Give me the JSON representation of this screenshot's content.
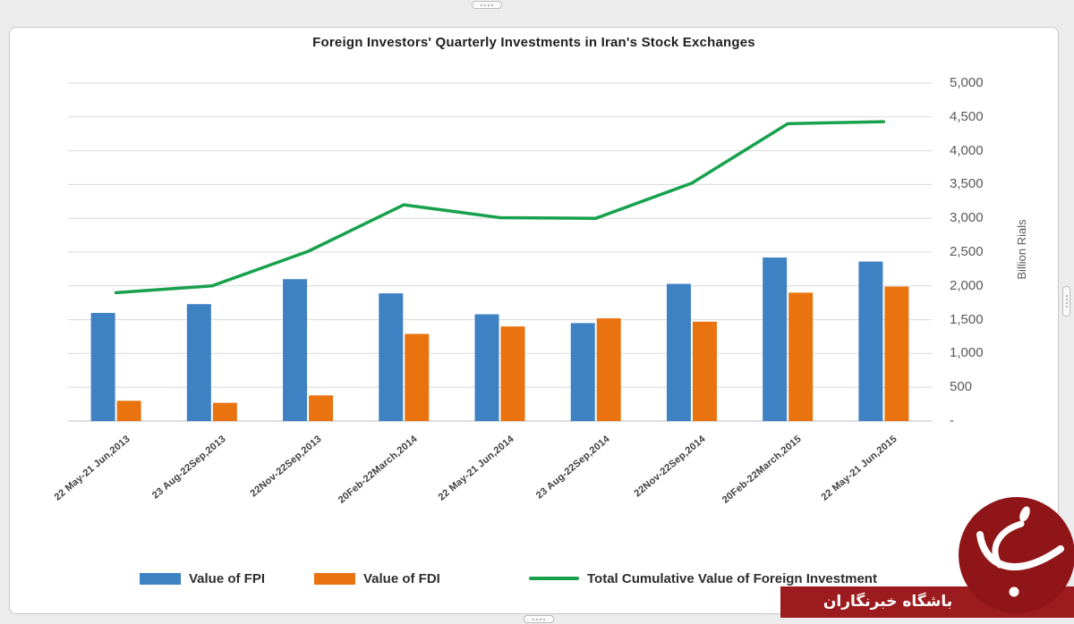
{
  "chart_data": {
    "type": "bar",
    "title": "Foreign Investors' Quarterly Investments in Iran's Stock Exchanges",
    "categories": [
      "22 May-21 Jun,2013",
      "23 Aug-22Sep,2013",
      "22Nov-22Sep,2013",
      "20Feb-22March,2014",
      "22 May-21 Jun,2014",
      "23 Aug-22Sep,2014",
      "22Nov-22Sep,2014",
      "20Feb-22March,2015",
      "22 May-21 Jun,2015"
    ],
    "series": [
      {
        "name": "Value of FPI",
        "kind": "bar",
        "color": "#3E82C4",
        "values": [
          1600,
          1730,
          2100,
          1890,
          1580,
          1450,
          2030,
          2420,
          2360
        ]
      },
      {
        "name": "Value of FDI",
        "kind": "bar",
        "color": "#E9730F",
        "values": [
          300,
          270,
          380,
          1290,
          1400,
          1520,
          1470,
          1900,
          1990
        ]
      },
      {
        "name": "Total Cumulative Value of Foreign Investment",
        "kind": "line",
        "color": "#17A14D",
        "values": [
          1900,
          2000,
          2510,
          3200,
          3010,
          3000,
          3520,
          4400,
          4430
        ]
      }
    ],
    "xlabel": "",
    "ylabel": "Billion Rials",
    "ylim": [
      0,
      5000
    ],
    "ytick_step": 500,
    "ytick_labels_top_to_bottom": [
      "5,000",
      "4,500",
      "4,000",
      "3,500",
      "3,000",
      "2,500",
      "2,000",
      "1,500",
      "1,000",
      "500",
      "-"
    ],
    "grid": true,
    "legend_position": "bottom"
  },
  "watermark": {
    "banner_text": "باشگاه خبرنگاران",
    "banner_color": "#9C1B1E",
    "logo_circle_color": "#8F1518"
  },
  "colors": {
    "background": "#ECECEC",
    "canvas_border": "#C9C9C9",
    "gridline": "#D9D9D9",
    "axis_line": "#BFBFBF",
    "axis_text": "#595959"
  }
}
